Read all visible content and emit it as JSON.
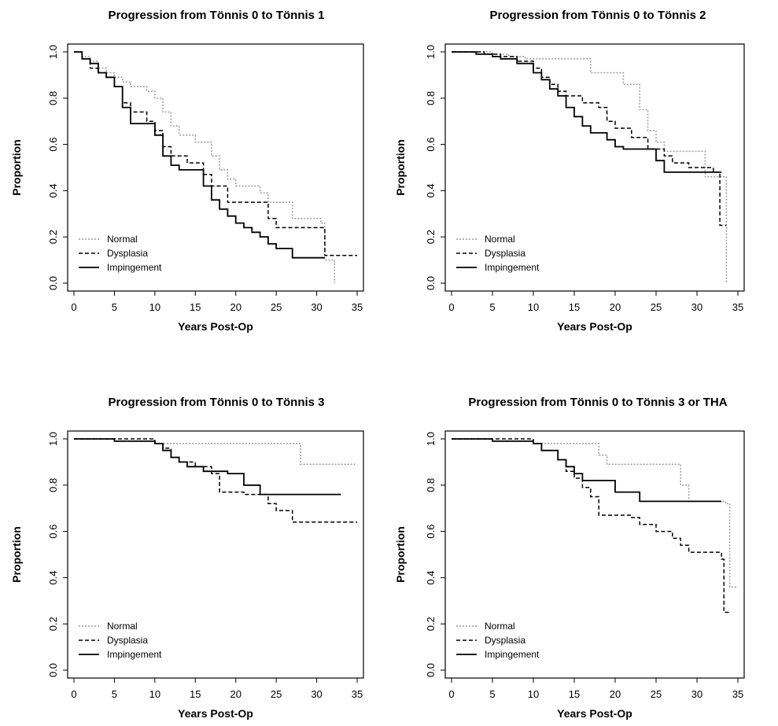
{
  "chart_data": [
    {
      "type": "line",
      "title": "Progression from Tönnis 0 to Tönnis 1",
      "xlabel": "Years Post-Op",
      "ylabel": "Proportion",
      "xlim": [
        0,
        35
      ],
      "ylim": [
        0,
        1
      ],
      "xticks": [
        "0",
        "5",
        "10",
        "15",
        "20",
        "25",
        "30",
        "35"
      ],
      "yticks": [
        "0.0",
        "0.2",
        "0.4",
        "0.6",
        "0.8",
        "1.0"
      ],
      "grid": false,
      "legend_position": "bottom-left",
      "step": true,
      "series": [
        {
          "name": "Normal",
          "style": "dotted",
          "color": "#9a9a9a",
          "x": [
            0,
            1,
            2,
            3,
            4,
            5,
            6,
            7,
            9,
            10,
            11,
            12,
            13,
            15,
            17,
            18,
            19,
            20,
            23,
            24,
            27,
            30.5,
            31,
            32.2
          ],
          "y": [
            1.0,
            0.98,
            0.96,
            0.93,
            0.91,
            0.89,
            0.87,
            0.85,
            0.83,
            0.8,
            0.74,
            0.68,
            0.64,
            0.61,
            0.55,
            0.49,
            0.45,
            0.42,
            0.39,
            0.35,
            0.28,
            0.26,
            0.1,
            0.0
          ]
        },
        {
          "name": "Dysplasia",
          "style": "dashed",
          "color": "#000000",
          "x": [
            0,
            1,
            2,
            3,
            4,
            5,
            6,
            7,
            9,
            10,
            11,
            12,
            14,
            16,
            17,
            19,
            24,
            25,
            31,
            35
          ],
          "y": [
            1.0,
            0.97,
            0.93,
            0.91,
            0.89,
            0.85,
            0.78,
            0.74,
            0.7,
            0.66,
            0.59,
            0.55,
            0.52,
            0.47,
            0.42,
            0.35,
            0.28,
            0.24,
            0.12,
            0.12
          ]
        },
        {
          "name": "Impingement",
          "style": "solid",
          "color": "#000000",
          "x": [
            0,
            1,
            2,
            3,
            4,
            5,
            6,
            7,
            10,
            11,
            12,
            13,
            16,
            17,
            18,
            19,
            20,
            21,
            22,
            23,
            24,
            25,
            27,
            31
          ],
          "y": [
            1.0,
            0.97,
            0.95,
            0.91,
            0.89,
            0.85,
            0.76,
            0.69,
            0.64,
            0.55,
            0.51,
            0.49,
            0.42,
            0.36,
            0.32,
            0.29,
            0.26,
            0.24,
            0.22,
            0.2,
            0.17,
            0.15,
            0.11,
            0.11
          ]
        }
      ]
    },
    {
      "type": "line",
      "title": "Progression from Tönnis 0 to Tönnis 2",
      "xlabel": "Years Post-Op",
      "ylabel": "Proportion",
      "xlim": [
        0,
        35
      ],
      "ylim": [
        0,
        1
      ],
      "xticks": [
        "0",
        "5",
        "10",
        "15",
        "20",
        "25",
        "30",
        "35"
      ],
      "yticks": [
        "0.0",
        "0.2",
        "0.4",
        "0.6",
        "0.8",
        "1.0"
      ],
      "grid": false,
      "legend_position": "bottom-left",
      "step": true,
      "series": [
        {
          "name": "Normal",
          "style": "dotted",
          "color": "#9a9a9a",
          "x": [
            0,
            5,
            7,
            9,
            11,
            13,
            17,
            18,
            21,
            23,
            24,
            25,
            26,
            31,
            33,
            33.6
          ],
          "y": [
            1.0,
            0.99,
            0.98,
            0.97,
            0.97,
            0.97,
            0.91,
            0.91,
            0.86,
            0.75,
            0.66,
            0.61,
            0.57,
            0.46,
            0.46,
            0.0
          ]
        },
        {
          "name": "Dysplasia",
          "style": "dashed",
          "color": "#000000",
          "x": [
            0,
            4,
            6,
            8,
            10,
            11,
            12,
            13,
            14,
            16,
            18,
            19,
            20,
            22,
            24,
            26,
            27,
            29,
            32,
            32.8,
            33.6
          ],
          "y": [
            1.0,
            0.99,
            0.98,
            0.96,
            0.93,
            0.89,
            0.86,
            0.83,
            0.81,
            0.78,
            0.76,
            0.7,
            0.67,
            0.63,
            0.58,
            0.55,
            0.52,
            0.5,
            0.48,
            0.25,
            0.25
          ]
        },
        {
          "name": "Impingement",
          "style": "solid",
          "color": "#000000",
          "x": [
            0,
            3,
            5,
            6,
            8,
            10,
            11,
            12,
            13,
            14,
            15,
            16,
            17,
            19,
            20,
            21,
            23,
            25,
            26,
            33
          ],
          "y": [
            1.0,
            0.99,
            0.98,
            0.97,
            0.95,
            0.91,
            0.88,
            0.84,
            0.81,
            0.76,
            0.72,
            0.68,
            0.65,
            0.62,
            0.59,
            0.58,
            0.58,
            0.53,
            0.48,
            0.48
          ]
        }
      ]
    },
    {
      "type": "line",
      "title": "Progression from Tönnis 0 to Tönnis 3",
      "xlabel": "Years Post-Op",
      "ylabel": "Proportion",
      "xlim": [
        0,
        35
      ],
      "ylim": [
        0,
        1
      ],
      "xticks": [
        "0",
        "5",
        "10",
        "15",
        "20",
        "25",
        "30",
        "35"
      ],
      "yticks": [
        "0.0",
        "0.2",
        "0.4",
        "0.6",
        "0.8",
        "1.0"
      ],
      "grid": false,
      "legend_position": "bottom-left",
      "step": true,
      "series": [
        {
          "name": "Normal",
          "style": "dotted",
          "color": "#9a9a9a",
          "x": [
            0,
            5,
            10,
            28,
            35
          ],
          "y": [
            1.0,
            0.99,
            0.98,
            0.89,
            0.89
          ]
        },
        {
          "name": "Dysplasia",
          "style": "dashed",
          "color": "#000000",
          "x": [
            0,
            10,
            11,
            12,
            13,
            15,
            17,
            18,
            21,
            24,
            25,
            27,
            35
          ],
          "y": [
            1.0,
            0.98,
            0.96,
            0.92,
            0.9,
            0.88,
            0.85,
            0.77,
            0.76,
            0.72,
            0.69,
            0.64,
            0.64
          ]
        },
        {
          "name": "Impingement",
          "style": "solid",
          "color": "#000000",
          "x": [
            0,
            5,
            10,
            11,
            12,
            13,
            14,
            16,
            19,
            21,
            23,
            33
          ],
          "y": [
            1.0,
            0.99,
            0.98,
            0.95,
            0.92,
            0.9,
            0.88,
            0.86,
            0.85,
            0.8,
            0.76,
            0.76
          ]
        }
      ]
    },
    {
      "type": "line",
      "title": "Progression from Tönnis 0 to Tönnis 3 or THA",
      "xlabel": "Years Post-Op",
      "ylabel": "Proportion",
      "xlim": [
        0,
        35
      ],
      "ylim": [
        0,
        1
      ],
      "xticks": [
        "0",
        "5",
        "10",
        "15",
        "20",
        "25",
        "30",
        "35"
      ],
      "yticks": [
        "0.0",
        "0.2",
        "0.4",
        "0.6",
        "0.8",
        "1.0"
      ],
      "grid": false,
      "legend_position": "bottom-left",
      "step": true,
      "series": [
        {
          "name": "Normal",
          "style": "dotted",
          "color": "#9a9a9a",
          "x": [
            0,
            5,
            10,
            18,
            19,
            28,
            29,
            33.5,
            34,
            35
          ],
          "y": [
            1.0,
            0.99,
            0.98,
            0.93,
            0.89,
            0.8,
            0.73,
            0.72,
            0.36,
            0.36
          ]
        },
        {
          "name": "Dysplasia",
          "style": "dashed",
          "color": "#000000",
          "x": [
            0,
            10,
            11,
            13,
            14,
            15,
            16,
            17,
            18,
            22,
            23,
            25,
            27,
            28,
            29,
            33,
            33.3,
            34
          ],
          "y": [
            1.0,
            0.98,
            0.95,
            0.91,
            0.86,
            0.83,
            0.79,
            0.75,
            0.67,
            0.66,
            0.63,
            0.6,
            0.57,
            0.54,
            0.51,
            0.48,
            0.25,
            0.25
          ]
        },
        {
          "name": "Impingement",
          "style": "solid",
          "color": "#000000",
          "x": [
            0,
            5,
            10,
            11,
            13,
            14,
            15,
            16,
            20,
            23,
            33
          ],
          "y": [
            1.0,
            0.99,
            0.98,
            0.95,
            0.91,
            0.88,
            0.85,
            0.82,
            0.77,
            0.73,
            0.73
          ]
        }
      ]
    }
  ]
}
